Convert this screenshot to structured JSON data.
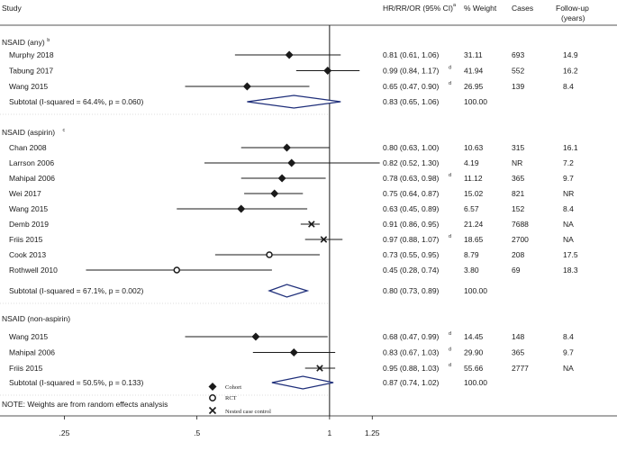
{
  "chart_data": {
    "type": "forest",
    "xscale": "log",
    "xlim": [
      0.2,
      1.5
    ],
    "null_line": 1,
    "xticks": [
      {
        "value": 0.25,
        "label": ".25"
      },
      {
        "value": 0.5,
        "label": ".5"
      },
      {
        "value": 1,
        "label": "1"
      },
      {
        "value": 1.25,
        "label": "1.25"
      }
    ],
    "headers": {
      "study": "Study",
      "estimate": "HR/RR/OR (95% CI)",
      "estimate_sup": "a",
      "weight": "% Weight",
      "cases": "Cases",
      "followup_1": "Follow-up",
      "followup_2": "(years)"
    },
    "groups": [
      {
        "title": "NSAID (any)",
        "title_sup": "b",
        "studies": [
          {
            "study": "Murphy 2018",
            "est": 0.81,
            "lo": 0.61,
            "hi": 1.06,
            "ci_text": "0.81 (0.61, 1.06)",
            "sup": "",
            "weight": "31.11",
            "cases": "693",
            "followup": "14.9",
            "marker": "cohort"
          },
          {
            "study": "Tabung 2017",
            "est": 0.99,
            "lo": 0.84,
            "hi": 1.17,
            "ci_text": "0.99 (0.84, 1.17)",
            "sup": "d",
            "weight": "41.94",
            "cases": "552",
            "followup": "16.2",
            "marker": "cohort"
          },
          {
            "study": "Wang 2015",
            "est": 0.65,
            "lo": 0.47,
            "hi": 0.9,
            "ci_text": "0.65 (0.47, 0.90)",
            "sup": "d",
            "weight": "26.95",
            "cases": "139",
            "followup": "8.4",
            "marker": "cohort"
          }
        ],
        "subtotal": {
          "label": "Subtotal  (I-squared = 64.4%, p = 0.060)",
          "est": 0.83,
          "lo": 0.65,
          "hi": 1.06,
          "ci_text": "0.83 (0.65, 1.06)",
          "weight": "100.00"
        }
      },
      {
        "title": "NSAID (aspirin)",
        "title_sup": "c",
        "studies": [
          {
            "study": "Chan 2008",
            "est": 0.8,
            "lo": 0.63,
            "hi": 1.0,
            "ci_text": "0.80 (0.63, 1.00)",
            "sup": "",
            "weight": "10.63",
            "cases": "315",
            "followup": "16.1",
            "marker": "cohort"
          },
          {
            "study": "Larrson 2006",
            "est": 0.82,
            "lo": 0.52,
            "hi": 1.3,
            "ci_text": "0.82 (0.52, 1.30)",
            "sup": "",
            "weight": "4.19",
            "cases": "NR",
            "followup": "7.2",
            "marker": "cohort"
          },
          {
            "study": "Mahipal 2006",
            "est": 0.78,
            "lo": 0.63,
            "hi": 0.98,
            "ci_text": "0.78 (0.63, 0.98)",
            "sup": "d",
            "weight": "11.12",
            "cases": "365",
            "followup": "9.7",
            "marker": "cohort"
          },
          {
            "study": "Wei 2017",
            "est": 0.75,
            "lo": 0.64,
            "hi": 0.87,
            "ci_text": "0.75 (0.64, 0.87)",
            "sup": "",
            "weight": "15.02",
            "cases": "821",
            "followup": "NR",
            "marker": "cohort"
          },
          {
            "study": "Wang 2015",
            "est": 0.63,
            "lo": 0.45,
            "hi": 0.89,
            "ci_text": "0.63 (0.45, 0.89)",
            "sup": "",
            "weight": "6.57",
            "cases": "152",
            "followup": "8.4",
            "marker": "cohort"
          },
          {
            "study": "Demb 2019",
            "est": 0.91,
            "lo": 0.86,
            "hi": 0.95,
            "ci_text": "0.91 (0.86, 0.95)",
            "sup": "",
            "weight": "21.24",
            "cases": "7688",
            "followup": "NA",
            "marker": "nested"
          },
          {
            "study": "Friis 2015",
            "est": 0.97,
            "lo": 0.88,
            "hi": 1.07,
            "ci_text": "0.97 (0.88, 1.07)",
            "sup": "d",
            "weight": "18.65",
            "cases": "2700",
            "followup": "NA",
            "marker": "nested"
          },
          {
            "study": "Cook 2013",
            "est": 0.73,
            "lo": 0.55,
            "hi": 0.95,
            "ci_text": "0.73 (0.55, 0.95)",
            "sup": "",
            "weight": "8.79",
            "cases": "208",
            "followup": "17.5",
            "marker": "rct"
          },
          {
            "study": "Rothwell 2010",
            "est": 0.45,
            "lo": 0.28,
            "hi": 0.74,
            "ci_text": "0.45 (0.28, 0.74)",
            "sup": "",
            "weight": "3.80",
            "cases": "69",
            "followup": "18.3",
            "marker": "rct"
          }
        ],
        "subtotal": {
          "label": "Subtotal  (I-squared = 67.1%, p = 0.002)",
          "est": 0.8,
          "lo": 0.73,
          "hi": 0.89,
          "ci_text": "0.80 (0.73, 0.89)",
          "weight": "100.00"
        }
      },
      {
        "title": "NSAID (non-aspirin)",
        "title_sup": "",
        "studies": [
          {
            "study": "Wang 2015",
            "est": 0.68,
            "lo": 0.47,
            "hi": 0.99,
            "ci_text": "0.68 (0.47, 0.99)",
            "sup": "d",
            "weight": "14.45",
            "cases": "148",
            "followup": "8.4",
            "marker": "cohort"
          },
          {
            "study": "Mahipal 2006",
            "est": 0.83,
            "lo": 0.67,
            "hi": 1.03,
            "ci_text": "0.83 (0.67, 1.03)",
            "sup": "d",
            "weight": "29.90",
            "cases": "365",
            "followup": "9.7",
            "marker": "cohort"
          },
          {
            "study": "Friis 2015",
            "est": 0.95,
            "lo": 0.88,
            "hi": 1.03,
            "ci_text": "0.95 (0.88, 1.03)",
            "sup": "d",
            "weight": "55.66",
            "cases": "2777",
            "followup": "NA",
            "marker": "nested"
          }
        ],
        "subtotal": {
          "label": "Subtotal  (I-squared = 50.5%, p = 0.133)",
          "est": 0.87,
          "lo": 0.74,
          "hi": 1.02,
          "ci_text": "0.87 (0.74, 1.02)",
          "weight": "100.00"
        }
      }
    ],
    "legend": [
      {
        "marker": "cohort",
        "label": "Cohort"
      },
      {
        "marker": "rct",
        "label": "RCT"
      },
      {
        "marker": "nested",
        "label": "Nested case control"
      }
    ],
    "note": "NOTE: Weights are from random effects analysis",
    "colors": {
      "diamond": "#1f2f7a",
      "ink": "#1a1a1a"
    }
  }
}
